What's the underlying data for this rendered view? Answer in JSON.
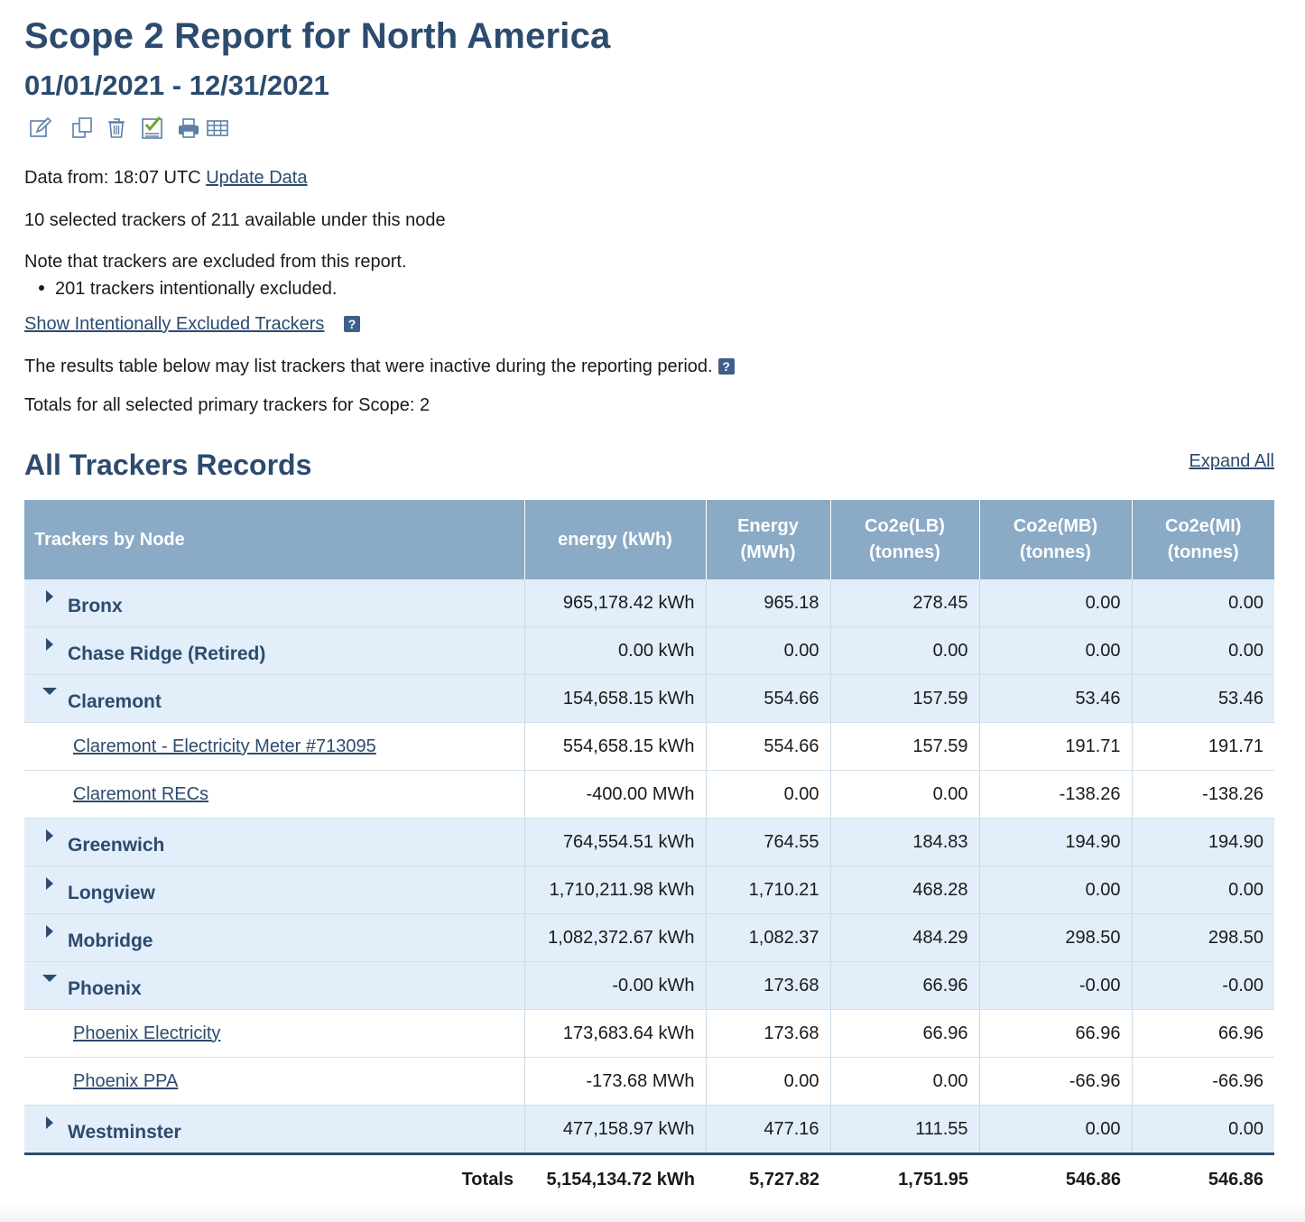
{
  "report": {
    "title": "Scope 2 Report for North America",
    "date_range": "01/01/2021 - 12/31/2021"
  },
  "toolbar": [
    {
      "icon": "edit-icon"
    },
    {
      "icon": "copy-icon"
    },
    {
      "icon": "trash-icon"
    },
    {
      "icon": "checklist-icon"
    },
    {
      "icon": "print-icon"
    },
    {
      "icon": "table-icon"
    }
  ],
  "info": {
    "data_from": "Data from: 18:07 UTC",
    "update_link": "Update Data",
    "selected": "10 selected trackers of 211 available under this node",
    "note": "Note that trackers are excluded from this report.",
    "bullet": "201 trackers intentionally excluded.",
    "show_excluded_link": "Show Intentionally Excluded Trackers",
    "help_glyph": "?",
    "inactive_note": "The results table below may list trackers that were inactive during the reporting period.",
    "totals_note": "Totals for all selected primary trackers for Scope: 2"
  },
  "section": {
    "title": "All Trackers Records",
    "expand_all": "Expand All"
  },
  "table": {
    "headers": {
      "node": "Trackers by Node",
      "energy_kwh": "energy (kWh)",
      "energy_mwh_1": "Energy",
      "energy_mwh_2": "(MWh)",
      "co2e_lb_1": "Co2e(LB)",
      "co2e_lb_2": "(tonnes)",
      "co2e_mb_1": "Co2e(MB)",
      "co2e_mb_2": "(tonnes)",
      "co2e_mi_1": "Co2e(MI)",
      "co2e_mi_2": "(tonnes)"
    },
    "rows": [
      {
        "name": "Bronx",
        "kwh": "965,178.42 kWh",
        "mwh": "965.18",
        "lb": "278.45",
        "mb": "0.00",
        "mi": "0.00"
      },
      {
        "name": "Chase Ridge (Retired)",
        "kwh": "0.00 kWh",
        "mwh": "0.00",
        "lb": "0.00",
        "mb": "0.00",
        "mi": "0.00"
      },
      {
        "name": "Claremont",
        "kwh": "154,658.15 kWh",
        "mwh": "554.66",
        "lb": "157.59",
        "mb": "53.46",
        "mi": "53.46"
      },
      {
        "name": "Claremont - Electricity Meter #713095",
        "kwh": "554,658.15 kWh",
        "mwh": "554.66",
        "lb": "157.59",
        "mb": "191.71",
        "mi": "191.71"
      },
      {
        "name": "Claremont RECs",
        "kwh": "-400.00 MWh",
        "mwh": "0.00",
        "lb": "0.00",
        "mb": "-138.26",
        "mi": "-138.26"
      },
      {
        "name": "Greenwich",
        "kwh": "764,554.51 kWh",
        "mwh": "764.55",
        "lb": "184.83",
        "mb": "194.90",
        "mi": "194.90"
      },
      {
        "name": "Longview",
        "kwh": "1,710,211.98 kWh",
        "mwh": "1,710.21",
        "lb": "468.28",
        "mb": "0.00",
        "mi": "0.00"
      },
      {
        "name": "Mobridge",
        "kwh": "1,082,372.67 kWh",
        "mwh": "1,082.37",
        "lb": "484.29",
        "mb": "298.50",
        "mi": "298.50"
      },
      {
        "name": "Phoenix",
        "kwh": "-0.00 kWh",
        "mwh": "173.68",
        "lb": "66.96",
        "mb": "-0.00",
        "mi": "-0.00"
      },
      {
        "name": "Phoenix Electricity",
        "kwh": "173,683.64 kWh",
        "mwh": "173.68",
        "lb": "66.96",
        "mb": "66.96",
        "mi": "66.96"
      },
      {
        "name": "Phoenix PPA",
        "kwh": "-173.68 MWh",
        "mwh": "0.00",
        "lb": "0.00",
        "mb": "-66.96",
        "mi": "-66.96"
      },
      {
        "name": "Westminster",
        "kwh": "477,158.97 kWh",
        "mwh": "477.16",
        "lb": "111.55",
        "mb": "0.00",
        "mi": "0.00"
      }
    ],
    "totals": {
      "label": "Totals",
      "kwh": "5,154,134.72 kWh",
      "mwh": "5,727.82",
      "lb": "1,751.95",
      "mb": "546.86",
      "mi": "546.86"
    }
  },
  "colors": {
    "heading": "#2c4b6e",
    "table_header_bg": "#8aaac5",
    "group_row_bg": "#e2eef9",
    "help_icon_bg": "#3f5f8b",
    "check_green": "#6aa92a"
  }
}
